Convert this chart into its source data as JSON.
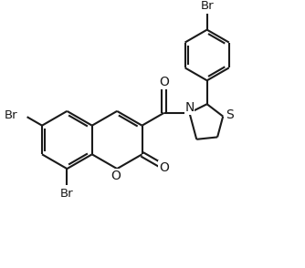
{
  "bg_color": "#ffffff",
  "line_color": "#1a1a1a",
  "line_width": 1.5,
  "font_size": 9.5,
  "figsize": [
    3.34,
    2.94
  ],
  "dpi": 100,
  "xlim": [
    0,
    10
  ],
  "ylim": [
    0,
    8.8
  ]
}
